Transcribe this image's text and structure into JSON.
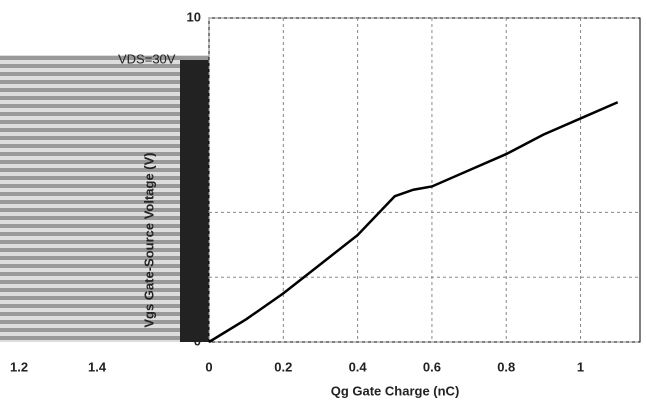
{
  "chart_data": {
    "type": "line",
    "annotations": [
      "VDS=30V"
    ],
    "stray_labels": [
      "1.2",
      "1.4"
    ],
    "xlabel": "Qg Gate Charge (nC)",
    "ylabel": "Vgs Gate-Source Voltage (V)",
    "x": [
      0,
      0.1,
      0.2,
      0.3,
      0.4,
      0.5,
      0.55,
      0.6,
      0.7,
      0.8,
      0.9,
      1.0,
      1.1
    ],
    "series": [
      {
        "name": "Vgs",
        "color": "#000000",
        "values": [
          0,
          0.7,
          1.5,
          2.4,
          3.3,
          4.5,
          4.7,
          4.8,
          5.3,
          5.8,
          6.4,
          6.9,
          7.4
        ]
      }
    ],
    "xlim": [
      0,
      1.16
    ],
    "ylim": [
      0,
      10
    ],
    "xticks": [
      0,
      0.2,
      0.4,
      0.6,
      0.8,
      1
    ],
    "yticks": [
      0,
      2,
      4,
      10
    ],
    "grid": true
  }
}
